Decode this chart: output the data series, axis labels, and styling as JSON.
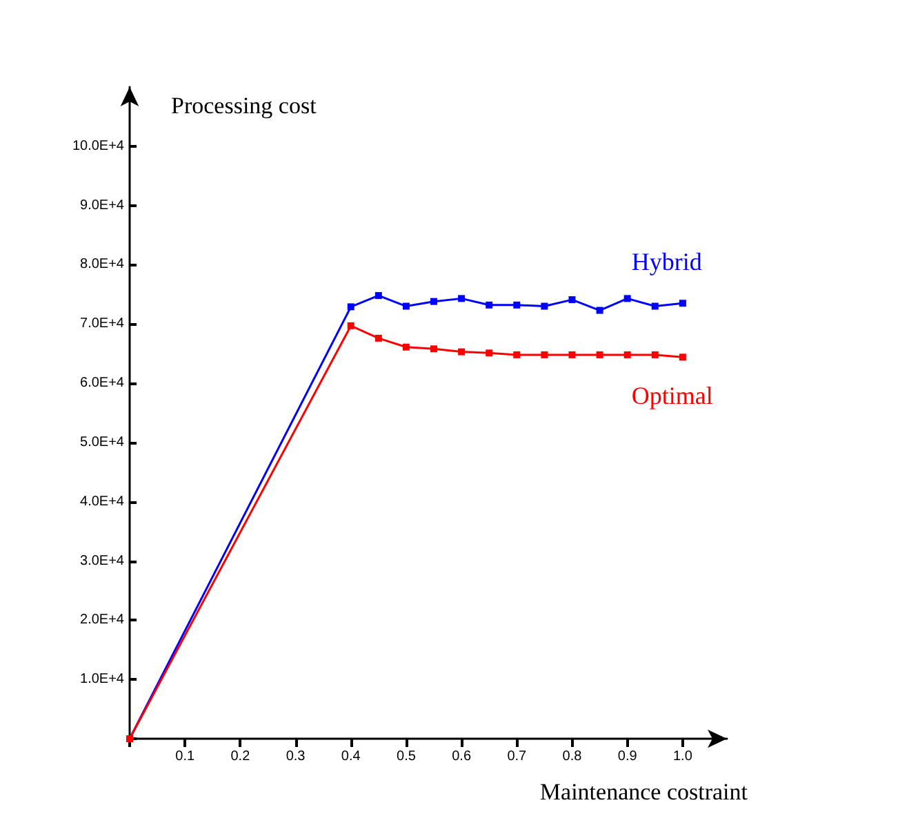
{
  "chart_data": {
    "type": "line",
    "ylabel": "Processing cost",
    "xlabel": "Maintenance costraint",
    "x": [
      0,
      0.4,
      0.45,
      0.5,
      0.55,
      0.6,
      0.65,
      0.7,
      0.75,
      0.8,
      0.85,
      0.9,
      0.95,
      1.0
    ],
    "series": [
      {
        "name": "Hybrid",
        "color": "#0000ff",
        "values": [
          0,
          72900,
          74800,
          73000,
          73800,
          74300,
          73200,
          73200,
          73000,
          74100,
          72300,
          74300,
          73000,
          73500
        ]
      },
      {
        "name": "Optimal",
        "color": "#ff0000",
        "values": [
          0,
          69700,
          67600,
          66100,
          65800,
          65300,
          65100,
          64800,
          64800,
          64800,
          64800,
          64800,
          64800,
          64400
        ]
      }
    ],
    "xlim": [
      0,
      1.08
    ],
    "ylim": [
      0,
      110000
    ],
    "xticks": [
      {
        "value": 0,
        "label": null
      },
      0.1,
      0.2,
      0.3,
      0.4,
      0.5,
      0.6,
      0.7,
      0.8,
      0.9,
      {
        "value": 1,
        "label": "1.0"
      }
    ],
    "yticks": [
      {
        "value": 0,
        "label": null
      },
      {
        "value": 10000,
        "label": "1.0E+4"
      },
      {
        "value": 20000,
        "label": "2.0E+4"
      },
      {
        "value": 30000,
        "label": "3.0E+4"
      },
      {
        "value": 40000,
        "label": "4.0E+4"
      },
      {
        "value": 50000,
        "label": "5.0E+4"
      },
      {
        "value": 60000,
        "label": "6.0E+4"
      },
      {
        "value": 70000,
        "label": "7.0E+4"
      },
      {
        "value": 80000,
        "label": "8.0E+4"
      },
      {
        "value": 90000,
        "label": "9.0E+4"
      },
      {
        "value": 100000,
        "label": "10.0E+4"
      }
    ],
    "grid": false,
    "legend": false,
    "marker": "square",
    "line_style": "solid"
  }
}
